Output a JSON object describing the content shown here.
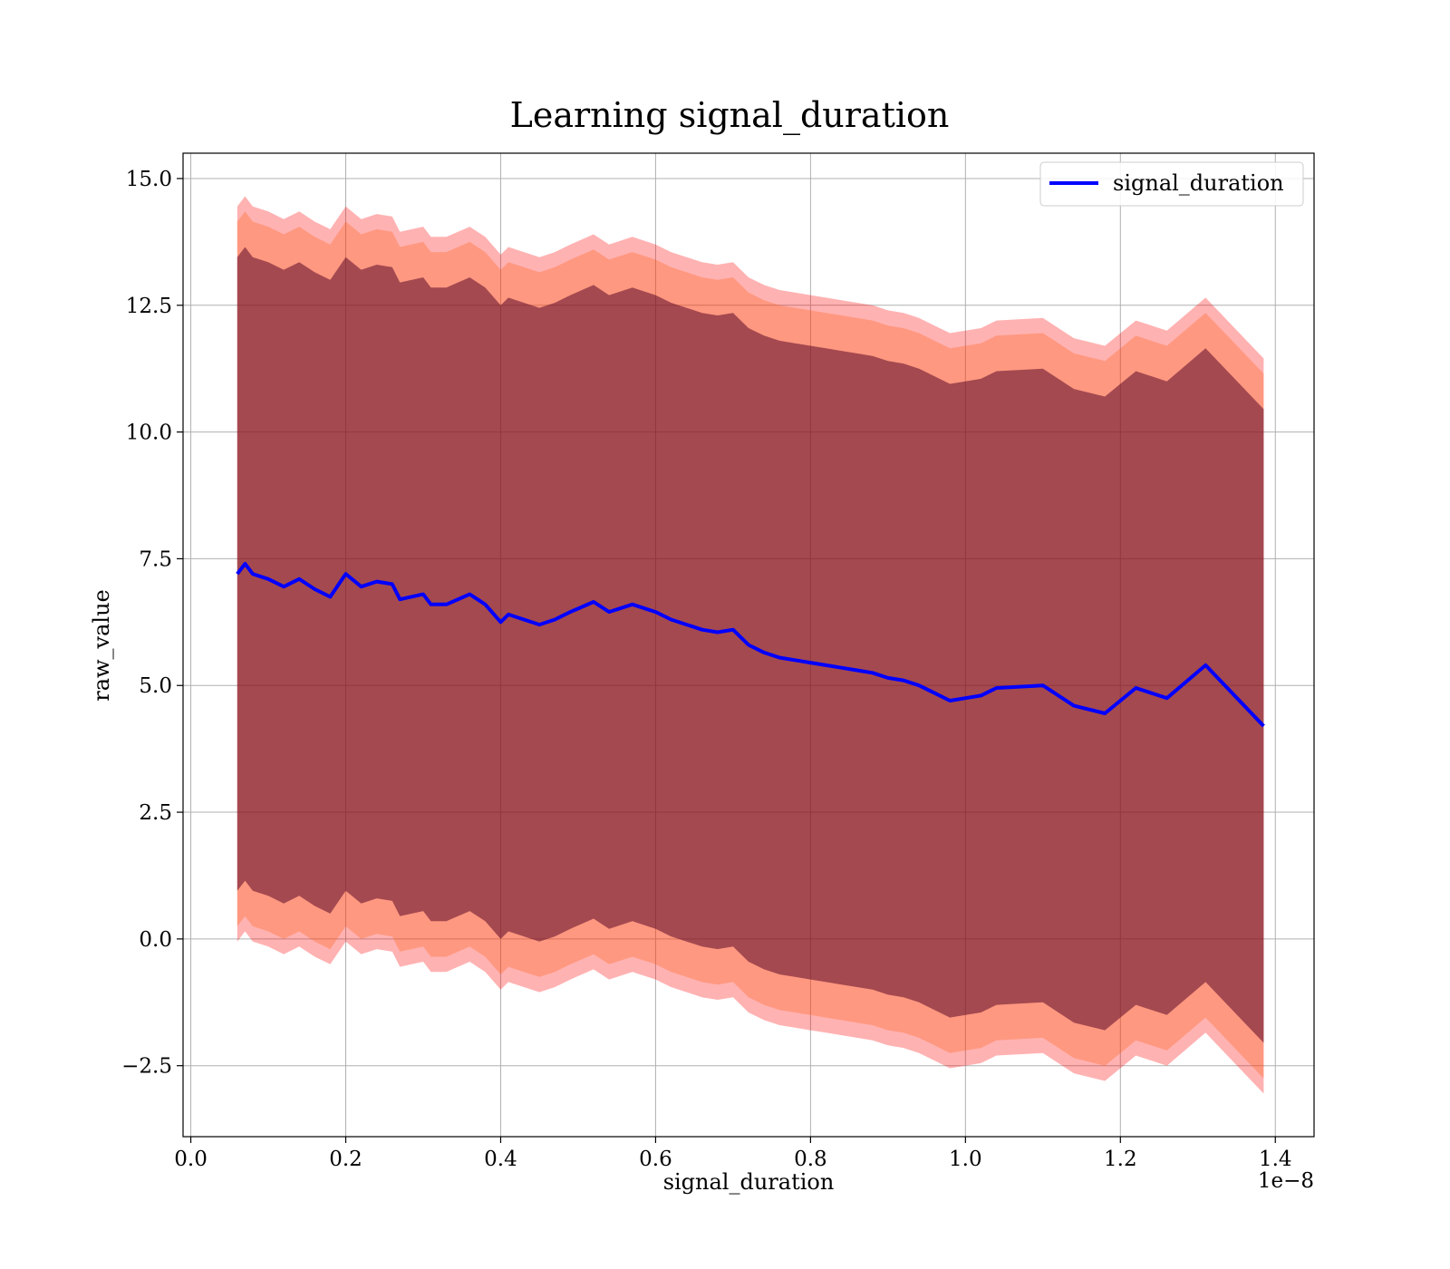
{
  "chart_data": {
    "type": "line",
    "title": "Learning signal_duration",
    "xlabel": "signal_duration",
    "ylabel": "raw_value",
    "x_offset_label": "1e−8",
    "xlim": [
      -1e-10,
      1.45e-08
    ],
    "ylim": [
      -3.9,
      15.5
    ],
    "x_ticks": [
      0.0,
      2e-09,
      4e-09,
      6e-09,
      8e-09,
      1e-08,
      1.2e-08,
      1.4e-08
    ],
    "x_tick_labels": [
      "0.0",
      "0.2",
      "0.4",
      "0.6",
      "0.8",
      "1.0",
      "1.2",
      "1.4"
    ],
    "y_ticks": [
      -2.5,
      0.0,
      2.5,
      5.0,
      7.5,
      10.0,
      12.5,
      15.0
    ],
    "y_tick_labels": [
      "−2.5",
      "0.0",
      "2.5",
      "5.0",
      "7.5",
      "10.0",
      "12.5",
      "15.0"
    ],
    "grid": true,
    "legend": {
      "placement": "upper right",
      "entries": [
        {
          "name": "signal_duration",
          "color": "#0000ff"
        }
      ]
    },
    "band_colors": {
      "outer": "#ff0000",
      "middle": "#ff5500",
      "inner": "#5a0a28"
    },
    "series": [
      {
        "name": "signal_duration",
        "color": "#0000ff",
        "x": [
          6e-10,
          7e-10,
          8e-10,
          1e-09,
          1.2e-09,
          1.4e-09,
          1.6e-09,
          1.8e-09,
          2e-09,
          2.2e-09,
          2.4e-09,
          2.6e-09,
          2.7e-09,
          3e-09,
          3.1e-09,
          3.3e-09,
          3.6e-09,
          3.8e-09,
          4e-09,
          4.1e-09,
          4.3e-09,
          4.5e-09,
          4.7e-09,
          4.9e-09,
          5.2e-09,
          5.4e-09,
          5.7e-09,
          6e-09,
          6.2e-09,
          6.4e-09,
          6.6e-09,
          6.8e-09,
          7e-09,
          7.2e-09,
          7.4e-09,
          7.6e-09,
          7.8e-09,
          8e-09,
          8.2e-09,
          8.4e-09,
          8.6e-09,
          8.8e-09,
          9e-09,
          9.2e-09,
          9.4e-09,
          9.6e-09,
          9.8e-09,
          1e-08,
          1.02e-08,
          1.04e-08,
          1.1e-08,
          1.14e-08,
          1.18e-08,
          1.22e-08,
          1.26e-08,
          1.31e-08,
          1.385e-08
        ],
        "y": [
          7.2,
          7.4,
          7.2,
          7.1,
          6.95,
          7.1,
          6.9,
          6.75,
          7.2,
          6.95,
          7.05,
          7.0,
          6.7,
          6.8,
          6.6,
          6.6,
          6.8,
          6.6,
          6.25,
          6.4,
          6.3,
          6.2,
          6.3,
          6.45,
          6.65,
          6.45,
          6.6,
          6.45,
          6.3,
          6.2,
          6.1,
          6.05,
          6.1,
          5.8,
          5.65,
          5.55,
          5.5,
          5.45,
          5.4,
          5.35,
          5.3,
          5.25,
          5.15,
          5.1,
          5.0,
          4.85,
          4.7,
          4.75,
          4.8,
          4.95,
          5.0,
          4.6,
          4.45,
          4.95,
          4.75,
          5.4,
          4.2
        ],
        "bands": {
          "inner_half_width": 6.25,
          "middle_half_width": 6.95,
          "outer_half_width": 7.25
        }
      }
    ]
  }
}
